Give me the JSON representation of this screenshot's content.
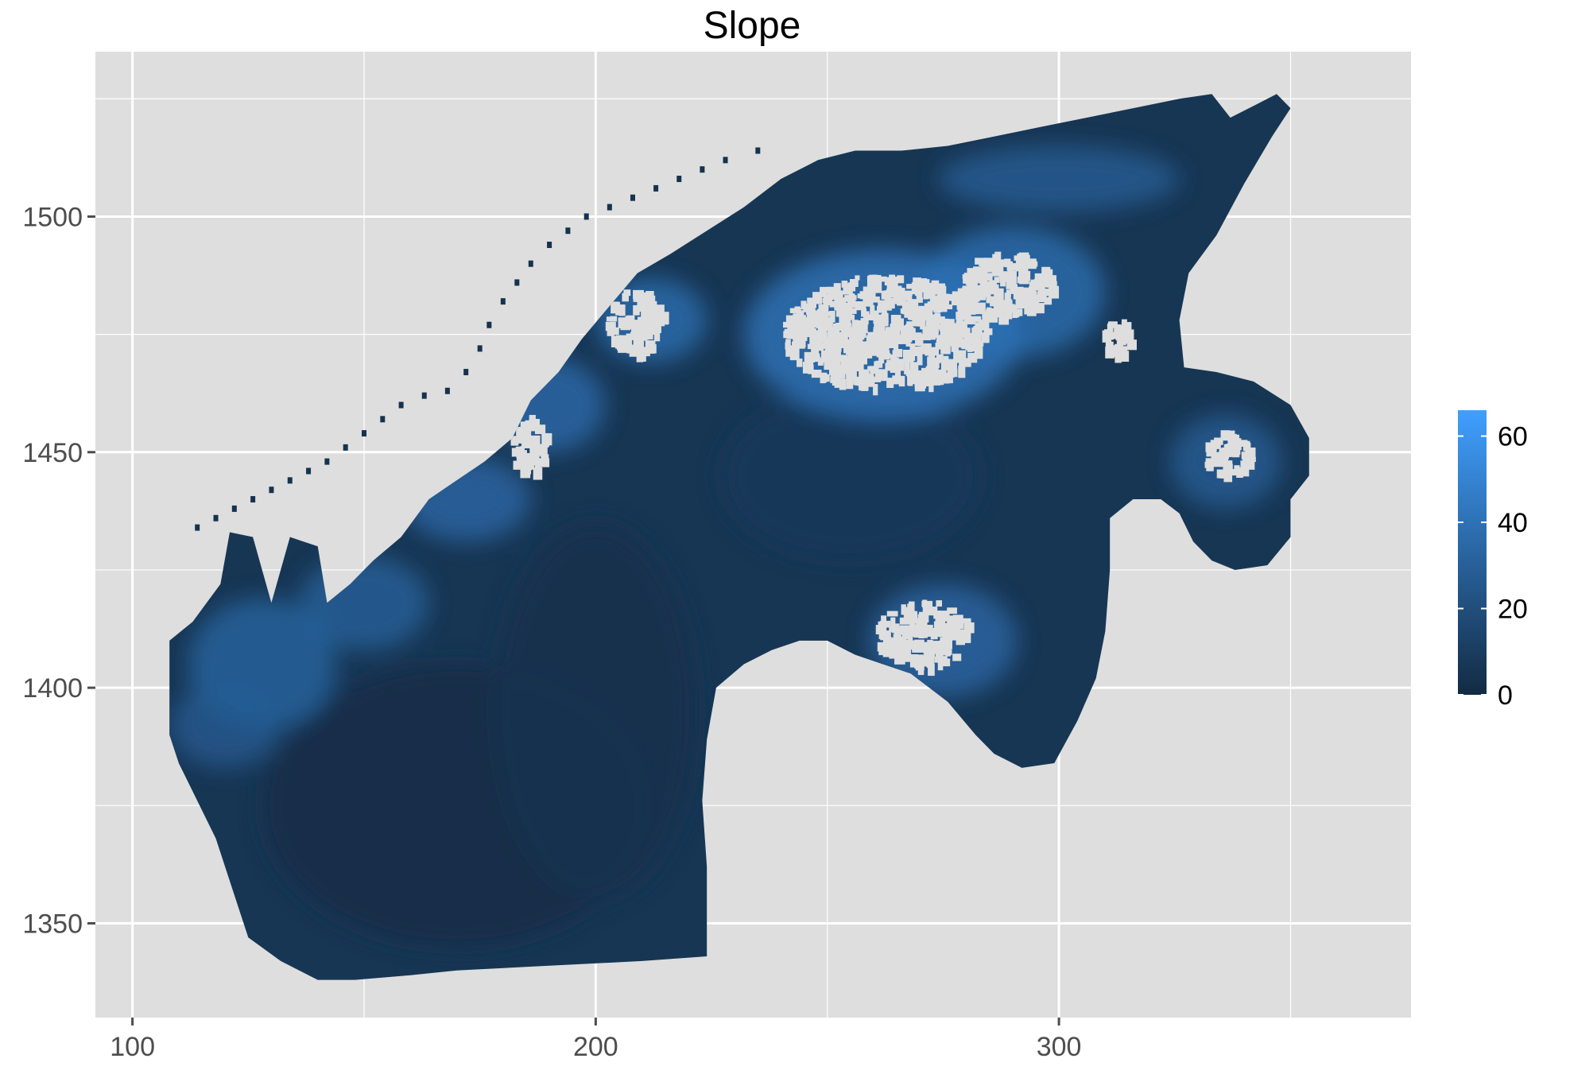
{
  "chart_data": {
    "type": "heatmap",
    "title": "Slope",
    "xlabel": "",
    "ylabel": "",
    "xlim": [
      92,
      376
    ],
    "ylim": [
      1330,
      1535
    ],
    "x_ticks": [
      100,
      200,
      300
    ],
    "x_tick_labels": [
      "100",
      "200",
      "300"
    ],
    "y_ticks": [
      1350,
      1400,
      1450,
      1500
    ],
    "y_tick_labels": [
      "1350",
      "1400",
      "1450",
      "1500"
    ],
    "grid": true,
    "panel_color": "#dedede",
    "grid_color": "#ffffff",
    "colorbar": {
      "placement": "right",
      "range": [
        0,
        66
      ],
      "ticks": [
        0,
        20,
        40,
        60
      ],
      "tick_labels": [
        "0",
        "20",
        "40",
        "60"
      ],
      "low_color": "#132b43",
      "high_color": "#409fff"
    },
    "region_outline": [
      [
        108,
        1390
      ],
      [
        108,
        1410
      ],
      [
        113,
        1414
      ],
      [
        119,
        1422
      ],
      [
        121,
        1433
      ],
      [
        126,
        1432
      ],
      [
        130,
        1418
      ],
      [
        134,
        1432
      ],
      [
        140,
        1430
      ],
      [
        142,
        1418
      ],
      [
        147,
        1422
      ],
      [
        152,
        1427
      ],
      [
        158,
        1432
      ],
      [
        164,
        1440
      ],
      [
        170,
        1444
      ],
      [
        176,
        1448
      ],
      [
        182,
        1453
      ],
      [
        186,
        1461
      ],
      [
        192,
        1467
      ],
      [
        197,
        1474
      ],
      [
        203,
        1481
      ],
      [
        209,
        1488
      ],
      [
        216,
        1492
      ],
      [
        224,
        1497
      ],
      [
        232,
        1502
      ],
      [
        240,
        1508
      ],
      [
        248,
        1512
      ],
      [
        256,
        1514
      ],
      [
        266,
        1514
      ],
      [
        276,
        1515
      ],
      [
        286,
        1517
      ],
      [
        296,
        1519
      ],
      [
        306,
        1521
      ],
      [
        316,
        1523
      ],
      [
        326,
        1525
      ],
      [
        333,
        1526
      ],
      [
        337,
        1521
      ],
      [
        343,
        1524
      ],
      [
        347,
        1526
      ],
      [
        350,
        1523
      ],
      [
        346,
        1517
      ],
      [
        340,
        1507
      ],
      [
        334,
        1496
      ],
      [
        328,
        1488
      ],
      [
        326,
        1478
      ],
      [
        327,
        1468
      ],
      [
        334,
        1467
      ],
      [
        342,
        1465
      ],
      [
        350,
        1460
      ],
      [
        354,
        1453
      ],
      [
        354,
        1445
      ],
      [
        350,
        1440
      ],
      [
        350,
        1432
      ],
      [
        345,
        1426
      ],
      [
        338,
        1425
      ],
      [
        333,
        1427
      ],
      [
        329,
        1431
      ],
      [
        326,
        1437
      ],
      [
        322,
        1440
      ],
      [
        316,
        1440
      ],
      [
        311,
        1436
      ],
      [
        311,
        1425
      ],
      [
        310,
        1412
      ],
      [
        308,
        1402
      ],
      [
        304,
        1393
      ],
      [
        299,
        1384
      ],
      [
        292,
        1383
      ],
      [
        286,
        1386
      ],
      [
        282,
        1390
      ],
      [
        276,
        1397
      ],
      [
        268,
        1403
      ],
      [
        262,
        1405
      ],
      [
        256,
        1407
      ],
      [
        250,
        1410
      ],
      [
        244,
        1410
      ],
      [
        238,
        1408
      ],
      [
        232,
        1405
      ],
      [
        226,
        1400
      ],
      [
        224,
        1389
      ],
      [
        223,
        1376
      ],
      [
        224,
        1362
      ],
      [
        224,
        1343
      ],
      [
        210,
        1342
      ],
      [
        190,
        1341
      ],
      [
        170,
        1340
      ],
      [
        160,
        1339
      ],
      [
        148,
        1338
      ],
      [
        140,
        1338
      ],
      [
        132,
        1342
      ],
      [
        125,
        1347
      ],
      [
        122,
        1356
      ],
      [
        118,
        1368
      ],
      [
        113,
        1378
      ],
      [
        110,
        1384
      ]
    ],
    "flat_zones": [
      {
        "x": 170,
        "y": 1375,
        "rx": 42,
        "ry": 30,
        "value": 2
      },
      {
        "x": 200,
        "y": 1395,
        "rx": 22,
        "ry": 40,
        "value": 4
      },
      {
        "x": 255,
        "y": 1445,
        "rx": 28,
        "ry": 18,
        "value": 8
      }
    ],
    "steep_zones": [
      {
        "x": 128,
        "y": 1405,
        "rx": 16,
        "ry": 14,
        "value": 34
      },
      {
        "x": 120,
        "y": 1392,
        "rx": 12,
        "ry": 9,
        "value": 28
      },
      {
        "x": 150,
        "y": 1418,
        "rx": 14,
        "ry": 10,
        "value": 32
      },
      {
        "x": 172,
        "y": 1440,
        "rx": 14,
        "ry": 9,
        "value": 36
      },
      {
        "x": 190,
        "y": 1460,
        "rx": 12,
        "ry": 10,
        "value": 38
      },
      {
        "x": 212,
        "y": 1478,
        "rx": 12,
        "ry": 9,
        "value": 40
      },
      {
        "x": 262,
        "y": 1475,
        "rx": 30,
        "ry": 18,
        "value": 44
      },
      {
        "x": 290,
        "y": 1484,
        "rx": 20,
        "ry": 14,
        "value": 40
      },
      {
        "x": 275,
        "y": 1410,
        "rx": 16,
        "ry": 12,
        "value": 36
      },
      {
        "x": 336,
        "y": 1448,
        "rx": 12,
        "ry": 10,
        "value": 30
      },
      {
        "x": 300,
        "y": 1508,
        "rx": 26,
        "ry": 7,
        "value": 30
      }
    ],
    "no_data_zones": [
      {
        "x": 262,
        "y": 1476,
        "rx": 22,
        "ry": 12
      },
      {
        "x": 288,
        "y": 1486,
        "rx": 10,
        "ry": 7
      },
      {
        "x": 208,
        "y": 1478,
        "rx": 6,
        "ry": 7
      },
      {
        "x": 185,
        "y": 1452,
        "rx": 4,
        "ry": 6
      },
      {
        "x": 270,
        "y": 1412,
        "rx": 10,
        "ry": 7
      },
      {
        "x": 336,
        "y": 1450,
        "rx": 5,
        "ry": 5
      },
      {
        "x": 312,
        "y": 1475,
        "rx": 3,
        "ry": 4
      }
    ],
    "coastline_points": [
      [
        114,
        1434
      ],
      [
        118,
        1436
      ],
      [
        122,
        1438
      ],
      [
        126,
        1440
      ],
      [
        130,
        1442
      ],
      [
        134,
        1444
      ],
      [
        138,
        1446
      ],
      [
        142,
        1448
      ],
      [
        146,
        1451
      ],
      [
        150,
        1454
      ],
      [
        154,
        1457
      ],
      [
        158,
        1460
      ],
      [
        163,
        1462
      ],
      [
        168,
        1463
      ],
      [
        172,
        1467
      ],
      [
        175,
        1472
      ],
      [
        177,
        1477
      ],
      [
        180,
        1482
      ],
      [
        183,
        1486
      ],
      [
        186,
        1490
      ],
      [
        190,
        1494
      ],
      [
        194,
        1497
      ],
      [
        198,
        1500
      ],
      [
        203,
        1502
      ],
      [
        208,
        1504
      ],
      [
        213,
        1506
      ],
      [
        218,
        1508
      ],
      [
        223,
        1510
      ],
      [
        228,
        1512
      ],
      [
        235,
        1514
      ]
    ]
  }
}
